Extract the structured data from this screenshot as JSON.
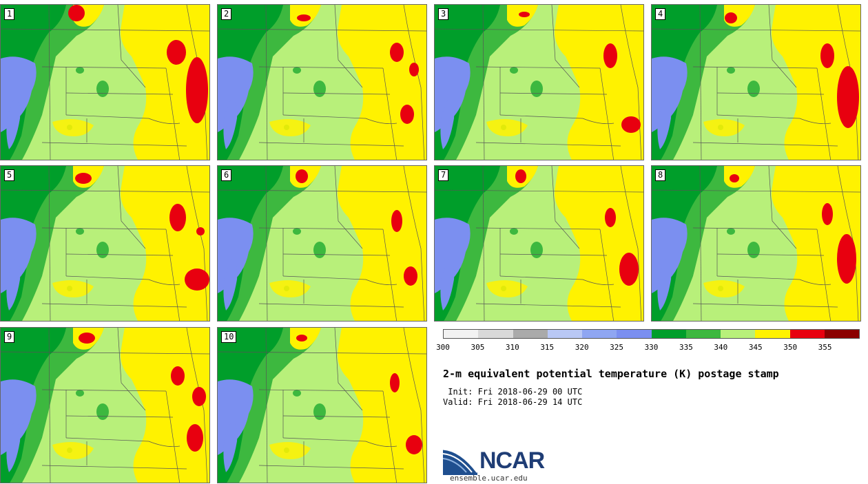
{
  "panels": [
    {
      "label": "1"
    },
    {
      "label": "2"
    },
    {
      "label": "3"
    },
    {
      "label": "4"
    },
    {
      "label": "5"
    },
    {
      "label": "6"
    },
    {
      "label": "7"
    },
    {
      "label": "8"
    },
    {
      "label": "9"
    },
    {
      "label": "10"
    }
  ],
  "map_colors": {
    "blue": "#7b8ff0",
    "dark_green": "#009e2a",
    "mid_green": "#3db83f",
    "light_green": "#b8f07a",
    "yellow": "#fff200",
    "red": "#e8000f",
    "boundary": "#555555"
  },
  "legend": {
    "colors": [
      "#f2f2f2",
      "#d9d9d9",
      "#aaaaaa",
      "#b9c8f5",
      "#8fa6f2",
      "#7b8ff0",
      "#009e2a",
      "#3db83f",
      "#b8f07a",
      "#fff200",
      "#e8000f",
      "#8b0000"
    ],
    "ticks": [
      "300",
      "305",
      "310",
      "315",
      "320",
      "325",
      "330",
      "335",
      "340",
      "345",
      "350",
      "355"
    ]
  },
  "title": "2-m equivalent potential temperature (K) postage stamp",
  "init_text": " Init: Fri 2018-06-29 00 UTC",
  "valid_text": "Valid: Fri 2018-06-29 14 UTC",
  "logo": {
    "name": "NCAR",
    "url": "ensemble.ucar.edu"
  }
}
